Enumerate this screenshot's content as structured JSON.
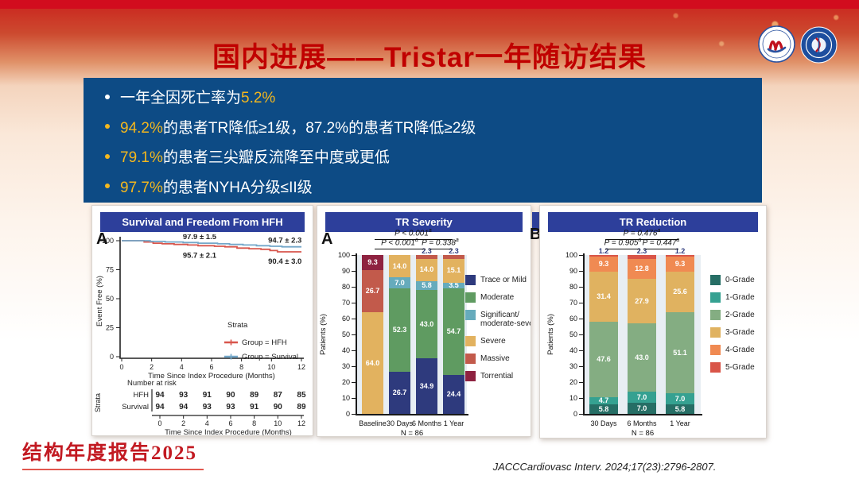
{
  "slide": {
    "title": "国内进展——Tristar一年随访结果",
    "footer_brand": "结构年度报告2025",
    "citation": "JACCCardiovasc Interv. 2024;17(23):2796-2807.",
    "colors": {
      "accent_red": "#c00000",
      "summary_panel_blue": "#0d4b85",
      "chart_title_bar_blue": "#2d3f9b",
      "highlight_yellow": "#f3b71e"
    },
    "logos": [
      "hospital-logo-1",
      "hospital-logo-2"
    ]
  },
  "bullets": {
    "b1_pre": "一年全因死亡率为",
    "b1_hl": "5.2%",
    "b2_hl": "94.2%",
    "b2_rest": "的患者TR降低≥1级，87.2%的患者TR降低≥2级",
    "b3_hl": "79.1%",
    "b3_rest": "的患者三尖瓣反流降至中度或更低",
    "b4_hl": "97.7%",
    "b4_rest": "的患者NYHA分级≤II级"
  },
  "chart_data": [
    {
      "type": "line",
      "panel": "A",
      "title": "Survival and Freedom From HFH",
      "xlabel": "Time Since Index Procedure (Months)",
      "ylabel": "Event Free (%)",
      "xticks": [
        0,
        2,
        4,
        6,
        8,
        10,
        12
      ],
      "yticks": [
        0,
        25,
        50,
        75,
        100
      ],
      "ylim": [
        0,
        100
      ],
      "legend_title": "Strata",
      "series": [
        {
          "name": "Group = HFH",
          "color": "#d8564c",
          "steps": [
            [
              0,
              100
            ],
            [
              1.5,
              100
            ],
            [
              1.5,
              98.9
            ],
            [
              2.1,
              98.9
            ],
            [
              2.1,
              97.9
            ],
            [
              2.7,
              97.9
            ],
            [
              2.7,
              97.3
            ],
            [
              3.5,
              97.3
            ],
            [
              3.5,
              96.8
            ],
            [
              4.4,
              96.8
            ],
            [
              4.4,
              96.3
            ],
            [
              5.1,
              96.3
            ],
            [
              5.1,
              95.7
            ],
            [
              6.2,
              95.7
            ],
            [
              6.2,
              95.2
            ],
            [
              6.9,
              95.2
            ],
            [
              6.9,
              94.7
            ],
            [
              7.7,
              94.7
            ],
            [
              7.7,
              93.6
            ],
            [
              8.5,
              93.6
            ],
            [
              8.5,
              93.1
            ],
            [
              9.3,
              93.1
            ],
            [
              9.3,
              92.6
            ],
            [
              9.9,
              92.6
            ],
            [
              9.9,
              91.5
            ],
            [
              10.4,
              91.5
            ],
            [
              10.4,
              90.4
            ],
            [
              12,
              90.4
            ]
          ]
        },
        {
          "name": "Group = Survival",
          "color": "#73a7c9",
          "steps": [
            [
              0,
              100
            ],
            [
              1.9,
              100
            ],
            [
              1.9,
              99.4
            ],
            [
              2.9,
              99.4
            ],
            [
              2.9,
              98.9
            ],
            [
              4.1,
              98.9
            ],
            [
              4.1,
              98.4
            ],
            [
              5.1,
              98.4
            ],
            [
              5.1,
              97.9
            ],
            [
              6.4,
              97.9
            ],
            [
              6.4,
              97.3
            ],
            [
              7.2,
              97.3
            ],
            [
              7.2,
              96.8
            ],
            [
              8.1,
              96.8
            ],
            [
              8.1,
              96.3
            ],
            [
              9,
              96.3
            ],
            [
              9,
              95.7
            ],
            [
              9.9,
              95.7
            ],
            [
              9.9,
              95.2
            ],
            [
              10.7,
              95.2
            ],
            [
              10.7,
              94.7
            ],
            [
              12,
              94.7
            ]
          ]
        }
      ],
      "annotations": [
        {
          "text": "97.9 ± 1.5",
          "m": 5.2,
          "v": 97.9,
          "pos": "above"
        },
        {
          "text": "94.7 ± 2.3",
          "m": 10.9,
          "v": 94.7,
          "pos": "above"
        },
        {
          "text": "95.7 ± 2.1",
          "m": 5.2,
          "v": 95.7,
          "pos": "below"
        },
        {
          "text": "90.4 ± 3.0",
          "m": 10.9,
          "v": 90.4,
          "pos": "below"
        }
      ],
      "risk_table": {
        "header": "Number at risk",
        "axis_label": "Strata",
        "xticks": [
          0,
          2,
          4,
          6,
          8,
          10,
          12
        ],
        "xlabel": "Time Since Index Procedure (Months)",
        "rows": [
          {
            "name": "HFH",
            "color": "#d8564c",
            "values": [
              94,
              93,
              91,
              90,
              89,
              87,
              85
            ]
          },
          {
            "name": "Survival",
            "color": "#73a7c9",
            "values": [
              94,
              94,
              93,
              93,
              91,
              90,
              89
            ]
          }
        ]
      }
    },
    {
      "type": "stacked-bar",
      "panel": "A",
      "title": "TR Severity",
      "ylabel": "Patients (%)",
      "ylim": [
        0,
        100
      ],
      "ytick_step": 10,
      "categories": [
        "Baseline",
        "30 Days",
        "6 Months",
        "1 Year"
      ],
      "note": "N = 86",
      "series": [
        {
          "name": "Trace or Mild",
          "color": "#2e3a7d",
          "values": [
            0,
            26.7,
            34.9,
            24.4
          ]
        },
        {
          "name": "Moderate",
          "color": "#5f9b61",
          "values": [
            0,
            52.3,
            43.0,
            54.7
          ]
        },
        {
          "name": "Significant/\nmoderate-severe",
          "color": "#66abbc",
          "values": [
            0,
            7.0,
            5.8,
            3.5
          ]
        },
        {
          "name": "Severe",
          "color": "#e2b25f",
          "values": [
            64.0,
            14.0,
            14.0,
            15.1
          ]
        },
        {
          "name": "Massive",
          "color": "#c25a4b",
          "values": [
            26.7,
            0,
            2.3,
            2.3
          ]
        },
        {
          "name": "Torrential",
          "color": "#8e2240",
          "values": [
            9.3,
            0,
            0,
            0
          ]
        }
      ],
      "top_labels": [
        "",
        "",
        "2.3",
        "2.3"
      ],
      "p_brackets": [
        {
          "label": "P < 0.001^a",
          "from": 0,
          "to": 3,
          "row": 0
        },
        {
          "label": "P < 0.001^a",
          "from": 0,
          "to": 2,
          "row": 1
        },
        {
          "label": "P = 0.338^a",
          "from": 2,
          "to": 3,
          "row": 1
        }
      ]
    },
    {
      "type": "stacked-bar",
      "panel": "B",
      "title": "TR Reduction",
      "ylabel": "Patients (%)",
      "ylim": [
        0,
        100
      ],
      "ytick_step": 10,
      "categories": [
        "30 Days",
        "6 Months",
        "1 Year"
      ],
      "note": "N = 86",
      "series": [
        {
          "name": "0-Grade",
          "color": "#266e65",
          "values": [
            5.8,
            7.0,
            5.8
          ]
        },
        {
          "name": "1-Grade",
          "color": "#35a191",
          "values": [
            4.7,
            7.0,
            7.0
          ]
        },
        {
          "name": "2-Grade",
          "color": "#84ad82",
          "values": [
            47.6,
            43.0,
            51.1
          ]
        },
        {
          "name": "3-Grade",
          "color": "#e0b260",
          "values": [
            31.4,
            27.9,
            25.6
          ]
        },
        {
          "name": "4-Grade",
          "color": "#f08a52",
          "values": [
            9.3,
            12.8,
            9.3
          ]
        },
        {
          "name": "5-Grade",
          "color": "#d95548",
          "values": [
            1.2,
            2.3,
            1.2
          ]
        }
      ],
      "top_labels": [
        "1.2",
        "2.3",
        "1.2"
      ],
      "p_brackets": [
        {
          "label": "P = 0.476^a",
          "from": 0,
          "to": 2,
          "row": 0
        },
        {
          "label": "P = 0.905^a",
          "from": 0,
          "to": 1,
          "row": 1
        },
        {
          "label": "P = 0.447^a",
          "from": 1,
          "to": 2,
          "row": 1
        }
      ]
    }
  ]
}
